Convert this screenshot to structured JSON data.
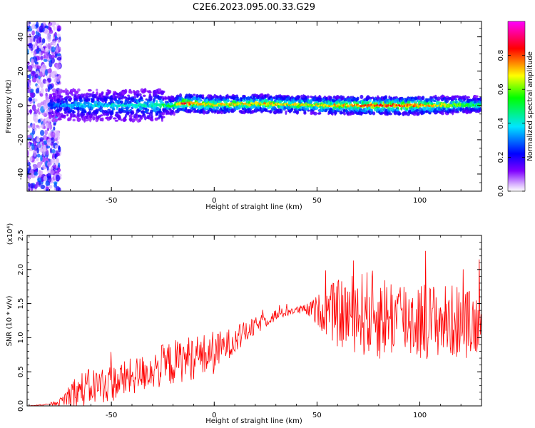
{
  "title": "C2E6.2023.095.00.33.G29",
  "chart_data": [
    {
      "type": "heatmap",
      "xlabel": "Height of straight line (km)",
      "ylabel": "Frequency (Hz)",
      "xlim": [
        -91,
        130
      ],
      "ylim": [
        -50,
        49
      ],
      "xticks": [
        -50,
        0,
        50,
        100
      ],
      "xtick_labels": [
        "-50",
        "0",
        "50",
        "100"
      ],
      "yticks": [
        -40,
        -20,
        0,
        20,
        40
      ],
      "ytick_labels": [
        "-40",
        "-20",
        "0",
        "20",
        "40"
      ],
      "colorbar": {
        "label": "Normalized spectral amplitude",
        "range": [
          0,
          1
        ],
        "ticks": [
          0.0,
          0.2,
          0.4,
          0.6,
          0.8
        ],
        "tick_labels": [
          "0.0",
          "0.2",
          "0.4",
          "0.6",
          "0.8"
        ],
        "colormap": [
          "#ffffff",
          "#d9b3ff",
          "#7f00ff",
          "#0000ff",
          "#00e5ff",
          "#00ff00",
          "#ffff00",
          "#ff0000",
          "#ff00ff"
        ]
      },
      "signal": {
        "center_frequency_hz": [
          [
            -80,
            0
          ],
          [
            -60,
            0
          ],
          [
            -40,
            0
          ],
          [
            -20,
            0
          ],
          [
            -15,
            1.5
          ],
          [
            0,
            0.5
          ],
          [
            20,
            1
          ],
          [
            40,
            0.5
          ],
          [
            60,
            0
          ],
          [
            80,
            0
          ],
          [
            100,
            0
          ],
          [
            130,
            0.5
          ]
        ],
        "peak_amplitude": [
          [
            -85,
            0.2
          ],
          [
            -70,
            0.35
          ],
          [
            -50,
            0.4
          ],
          [
            -30,
            0.45
          ],
          [
            -20,
            0.55
          ],
          [
            -15,
            0.9
          ],
          [
            0,
            0.7
          ],
          [
            30,
            0.75
          ],
          [
            50,
            0.7
          ],
          [
            80,
            0.85
          ],
          [
            100,
            0.8
          ],
          [
            130,
            0.5
          ]
        ],
        "noise_region_x": [
          -91,
          -75
        ]
      }
    },
    {
      "type": "line",
      "xlabel": "Height of straight line (km)",
      "ylabel": "SNR (10 * v/v)",
      "y_multiplier": "(x10⁴)",
      "xlim": [
        -91,
        130
      ],
      "ylim": [
        0,
        2.5
      ],
      "xticks": [
        -50,
        0,
        50,
        100
      ],
      "xtick_labels": [
        "-50",
        "0",
        "50",
        "100"
      ],
      "yticks": [
        0,
        0.5,
        1.0,
        1.5,
        2.0,
        2.5
      ],
      "ytick_labels": [
        "0.0",
        "0.5",
        "1.0",
        "1.5",
        "2.0",
        "2.5"
      ],
      "color": "#ff0000",
      "series": [
        {
          "x": [
            -91,
            -80,
            -75,
            -70,
            -65,
            -60,
            -55,
            -50,
            -45,
            -40,
            -35,
            -30,
            -25,
            -20,
            -15,
            -10,
            -5,
            0,
            5,
            10,
            15,
            20,
            25,
            30,
            35,
            40,
            45,
            50,
            55,
            60,
            65,
            70,
            75,
            80,
            85,
            90,
            95,
            100,
            105,
            110,
            115,
            120,
            125,
            130
          ],
          "y": [
            0.0,
            0.02,
            0.05,
            0.15,
            0.2,
            0.25,
            0.28,
            0.3,
            0.35,
            0.4,
            0.45,
            0.5,
            0.55,
            0.6,
            0.65,
            0.68,
            0.7,
            0.75,
            0.85,
            0.95,
            1.05,
            1.15,
            1.25,
            1.32,
            1.37,
            1.4,
            1.4,
            1.38,
            1.35,
            1.3,
            1.3,
            1.3,
            1.28,
            1.25,
            1.25,
            1.25,
            1.22,
            1.2,
            1.2,
            1.2,
            1.18,
            1.18,
            1.15,
            1.2
          ],
          "noise": [
            0.0,
            0.01,
            0.05,
            0.2,
            0.25,
            0.25,
            0.25,
            0.25,
            0.25,
            0.25,
            0.25,
            0.25,
            0.3,
            0.3,
            0.3,
            0.3,
            0.3,
            0.3,
            0.2,
            0.2,
            0.15,
            0.12,
            0.1,
            0.08,
            0.06,
            0.05,
            0.08,
            0.2,
            0.35,
            0.45,
            0.5,
            0.55,
            0.6,
            0.6,
            0.55,
            0.55,
            0.55,
            0.55,
            0.5,
            0.5,
            0.5,
            0.5,
            0.45,
            0.4
          ]
        }
      ]
    }
  ]
}
